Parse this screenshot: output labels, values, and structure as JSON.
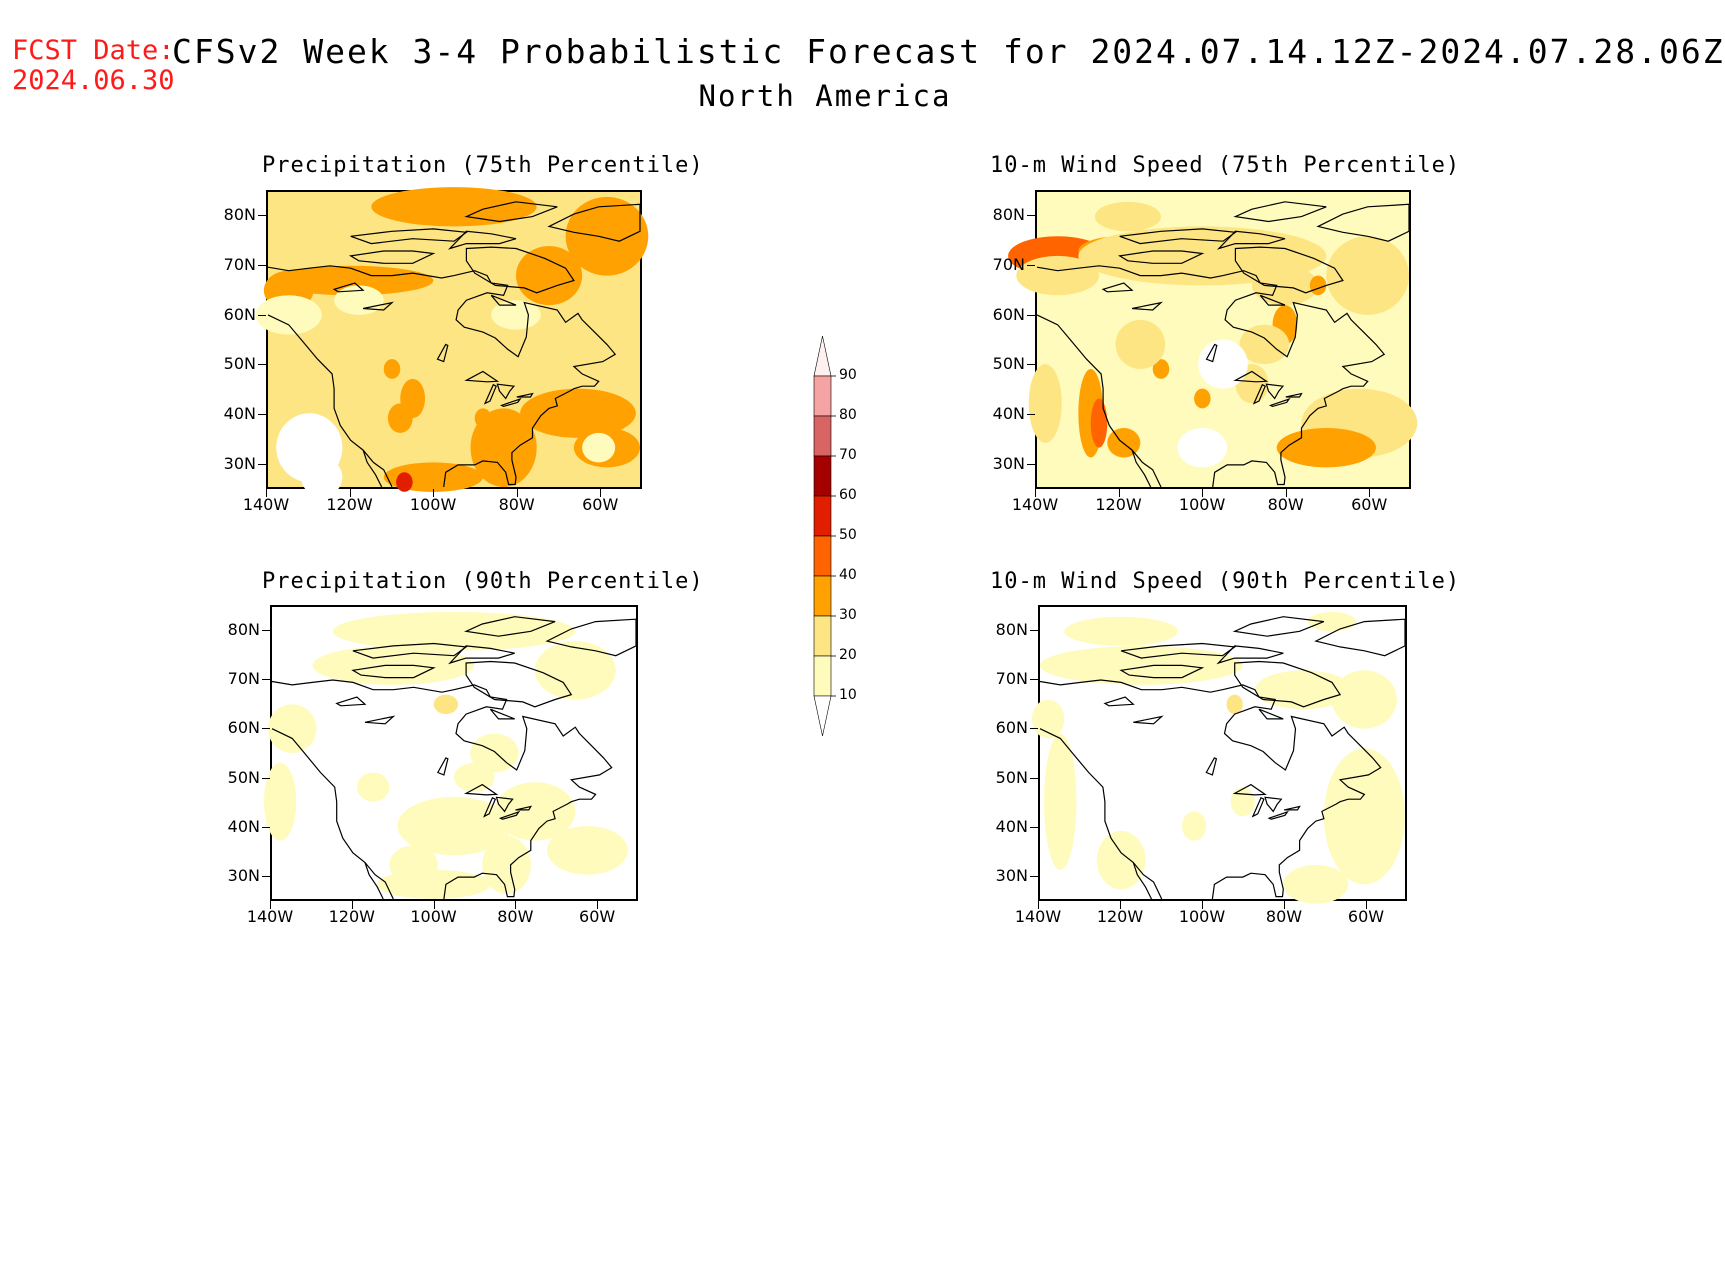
{
  "header": {
    "fcst_label": "FCST Date:",
    "fcst_date": "2024.06.30",
    "title": "CFSv2 Week 3-4 Probabilistic Forecast for 2024.07.14.12Z-2024.07.28.06Z",
    "region": "North America"
  },
  "axes": {
    "lat_ticks": [
      "80N",
      "70N",
      "60N",
      "50N",
      "40N",
      "30N"
    ],
    "lon_ticks": [
      "140W",
      "120W",
      "100W",
      "80W",
      "60W"
    ]
  },
  "panels": [
    {
      "id": "precip75",
      "title": "Precipitation (75th Percentile)"
    },
    {
      "id": "wind75",
      "title": "10-m Wind Speed (75th Percentile)"
    },
    {
      "id": "precip90",
      "title": "Precipitation (90th Percentile)"
    },
    {
      "id": "wind90",
      "title": "10-m Wind Speed (90th Percentile)"
    }
  ],
  "colorbar": {
    "levels": [
      "10",
      "20",
      "30",
      "40",
      "50",
      "60",
      "70",
      "80",
      "90"
    ],
    "colors": [
      "#fffbbd",
      "#fde583",
      "#ffa100",
      "#ff6400",
      "#e11e00",
      "#a50000",
      "#d86464",
      "#f5a3a3",
      "#ffe8e8"
    ]
  }
}
